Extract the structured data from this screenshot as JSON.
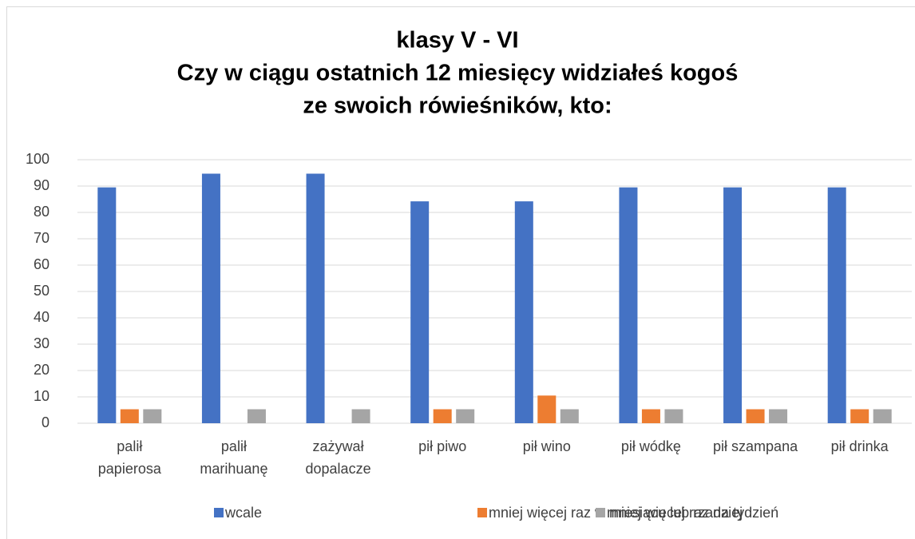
{
  "chart_data": {
    "type": "bar",
    "title": [
      "klasy V - VI",
      "Czy w ciągu ostatnich 12 miesięcy widziałeś kogoś",
      "ze swoich rówieśników, kto:"
    ],
    "categories": [
      [
        "palił",
        "papierosa"
      ],
      [
        "palił",
        "marihuanę"
      ],
      [
        "zażywał",
        "dopalacze"
      ],
      [
        "pił piwo"
      ],
      [
        "pił wino"
      ],
      [
        "pił wódkę"
      ],
      [
        "pił szampana"
      ],
      [
        "pił drinka"
      ]
    ],
    "series": [
      {
        "name": "wcale",
        "color": "#4472c4",
        "values": [
          89.5,
          94.7,
          94.7,
          84.2,
          84.2,
          89.5,
          89.5,
          89.5
        ]
      },
      {
        "name": "mniej więcej raz w miesiącu lub rzadziej",
        "color": "#ed7d31",
        "values": [
          5.3,
          0,
          0,
          5.3,
          10.5,
          5.3,
          5.3,
          5.3
        ]
      },
      {
        "name": "mniej więcej raz na tydzień",
        "color": "#a5a5a5",
        "values": [
          5.3,
          5.3,
          5.3,
          5.3,
          5.3,
          5.3,
          5.3,
          5.3
        ]
      }
    ],
    "ylim": [
      0,
      100
    ],
    "yticks": [
      0,
      10,
      20,
      30,
      40,
      50,
      60,
      70,
      80,
      90,
      100
    ],
    "grid": true,
    "legend": "bottom"
  }
}
